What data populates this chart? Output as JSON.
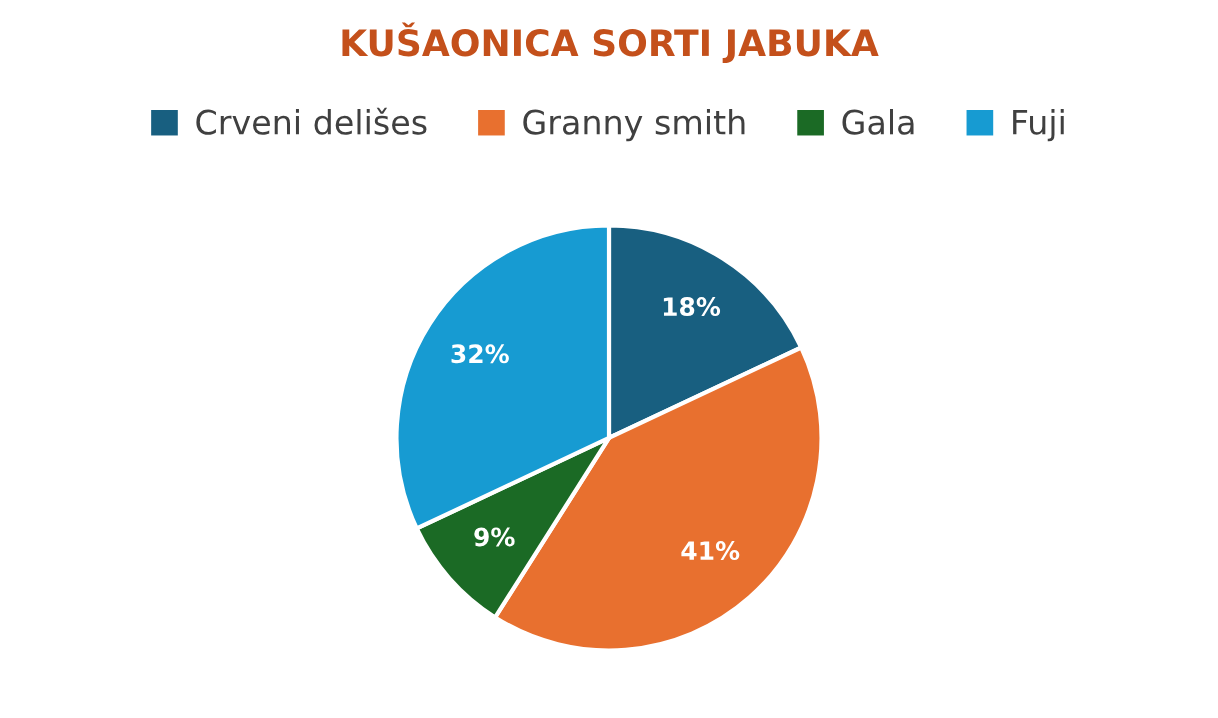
{
  "chart_data": {
    "type": "pie",
    "title": "KUŠAONICA SORTI JABUKA",
    "categories": [
      "Crveni delišes",
      "Granny smith",
      "Gala",
      "Fuji"
    ],
    "values": [
      18,
      41,
      9,
      32
    ],
    "value_labels": [
      "18%",
      "41%",
      "9%",
      "32%"
    ],
    "colors": [
      "#185f80",
      "#e8702f",
      "#1b6a25",
      "#179bd2"
    ],
    "legend": "top"
  }
}
